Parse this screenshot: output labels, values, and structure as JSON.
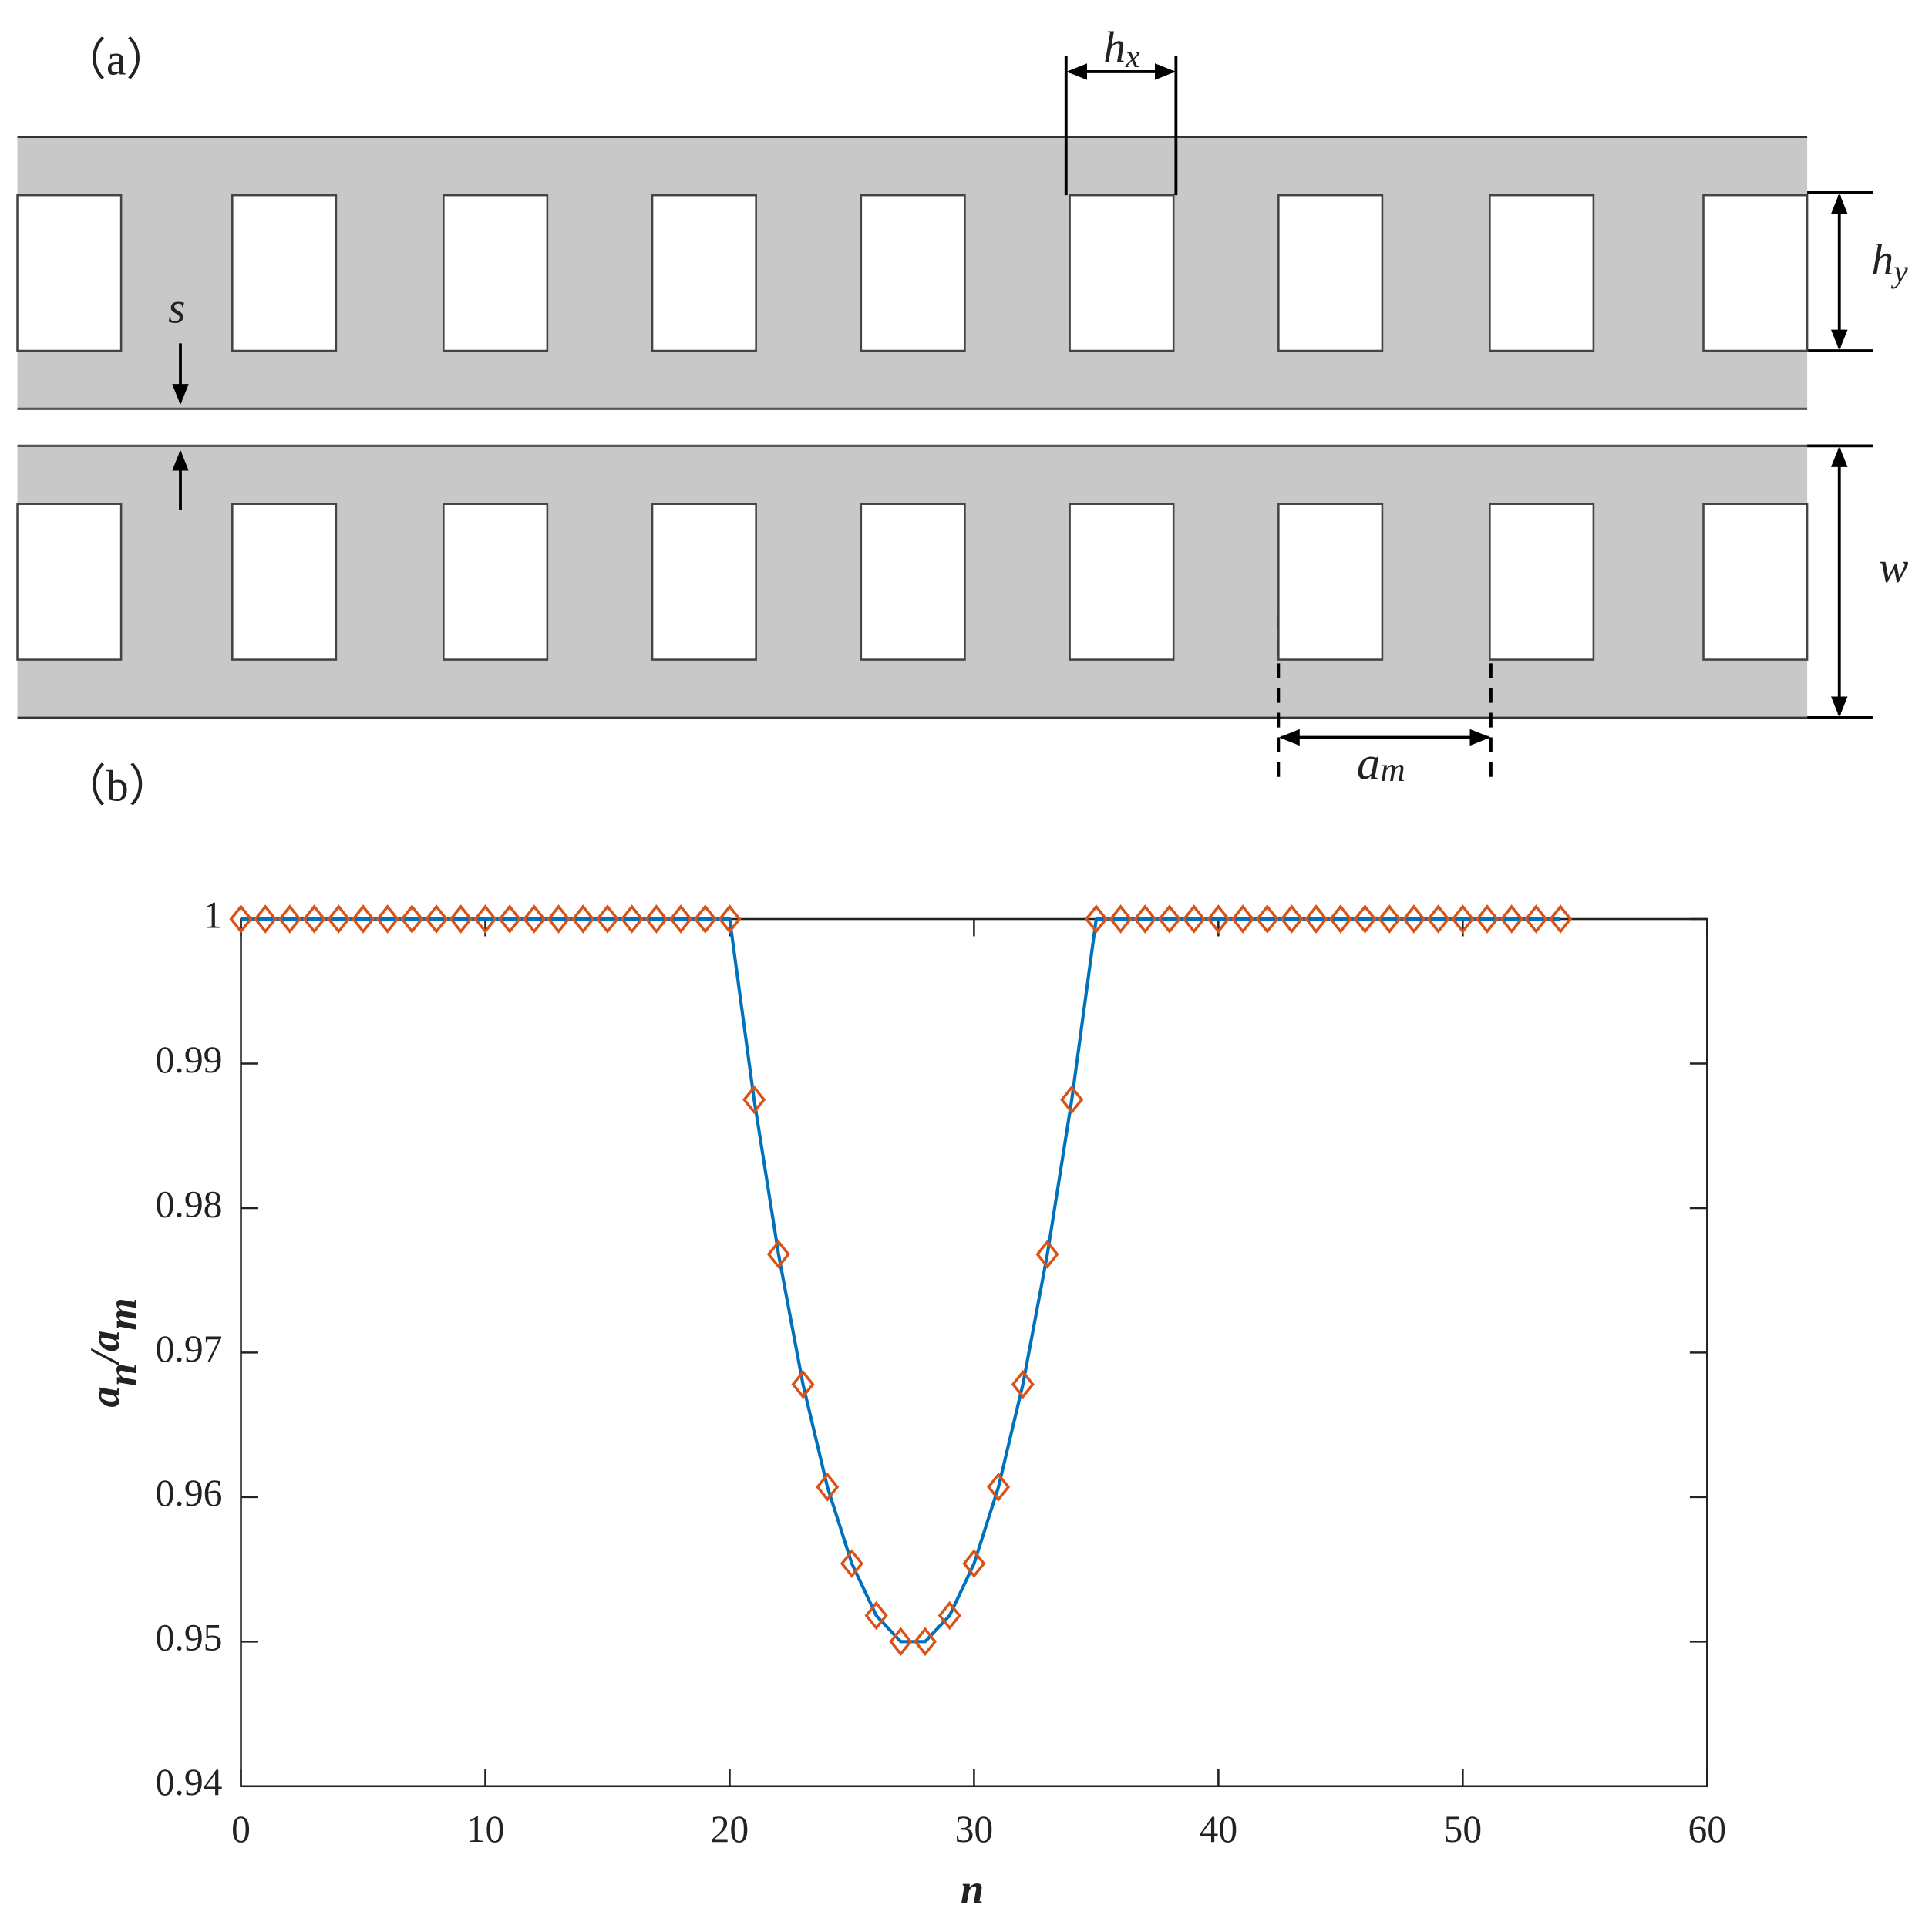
{
  "diagram": {
    "panel_label": "（a）",
    "labels": {
      "hx": [
        "h",
        "x"
      ],
      "hy": [
        "h",
        "y"
      ],
      "s": "s",
      "w": "w",
      "am": [
        "a",
        "m"
      ]
    }
  },
  "chart_data": {
    "type": "line",
    "panel_label": "（b）",
    "xlabel": "n",
    "ylabel": [
      "a",
      "n",
      "/a",
      "m"
    ],
    "x": [
      0,
      1,
      2,
      3,
      4,
      5,
      6,
      7,
      8,
      9,
      10,
      11,
      12,
      13,
      14,
      15,
      16,
      17,
      18,
      19,
      20,
      21,
      22,
      23,
      24,
      25,
      26,
      27,
      28,
      29,
      30,
      31,
      32,
      33,
      34,
      35,
      36,
      37,
      38,
      39,
      40,
      41,
      42,
      43,
      44,
      45,
      46,
      47,
      48,
      49,
      50,
      51,
      52,
      53,
      54
    ],
    "series": [
      {
        "color": "#0072bd",
        "style": "line",
        "values": [
          1,
          1,
          1,
          1,
          1,
          1,
          1,
          1,
          1,
          1,
          1,
          1,
          1,
          1,
          1,
          1,
          1,
          1,
          1,
          1,
          1,
          0.9875,
          0.9768,
          0.9678,
          0.9607,
          0.9554,
          0.9518,
          0.95,
          0.95,
          0.9518,
          0.9554,
          0.9607,
          0.9678,
          0.9768,
          0.9875,
          1,
          1,
          1,
          1,
          1,
          1,
          1,
          1,
          1,
          1,
          1,
          1,
          1,
          1,
          1,
          1,
          1,
          1,
          1,
          1
        ]
      },
      {
        "color": "#d95319",
        "style": "diamond",
        "values": [
          1,
          1,
          1,
          1,
          1,
          1,
          1,
          1,
          1,
          1,
          1,
          1,
          1,
          1,
          1,
          1,
          1,
          1,
          1,
          1,
          1,
          0.9875,
          0.9768,
          0.9678,
          0.9607,
          0.9554,
          0.9518,
          0.95,
          0.95,
          0.9518,
          0.9554,
          0.9607,
          0.9678,
          0.9768,
          0.9875,
          1,
          1,
          1,
          1,
          1,
          1,
          1,
          1,
          1,
          1,
          1,
          1,
          1,
          1,
          1,
          1,
          1,
          1,
          1,
          1
        ]
      }
    ],
    "xlim": [
      0,
      60
    ],
    "xticks": [
      0,
      10,
      20,
      30,
      40,
      50,
      60
    ],
    "ylim": [
      0.94,
      1
    ],
    "yticks": [
      0.94,
      0.95,
      0.96,
      0.97,
      0.98,
      0.99,
      1
    ]
  }
}
